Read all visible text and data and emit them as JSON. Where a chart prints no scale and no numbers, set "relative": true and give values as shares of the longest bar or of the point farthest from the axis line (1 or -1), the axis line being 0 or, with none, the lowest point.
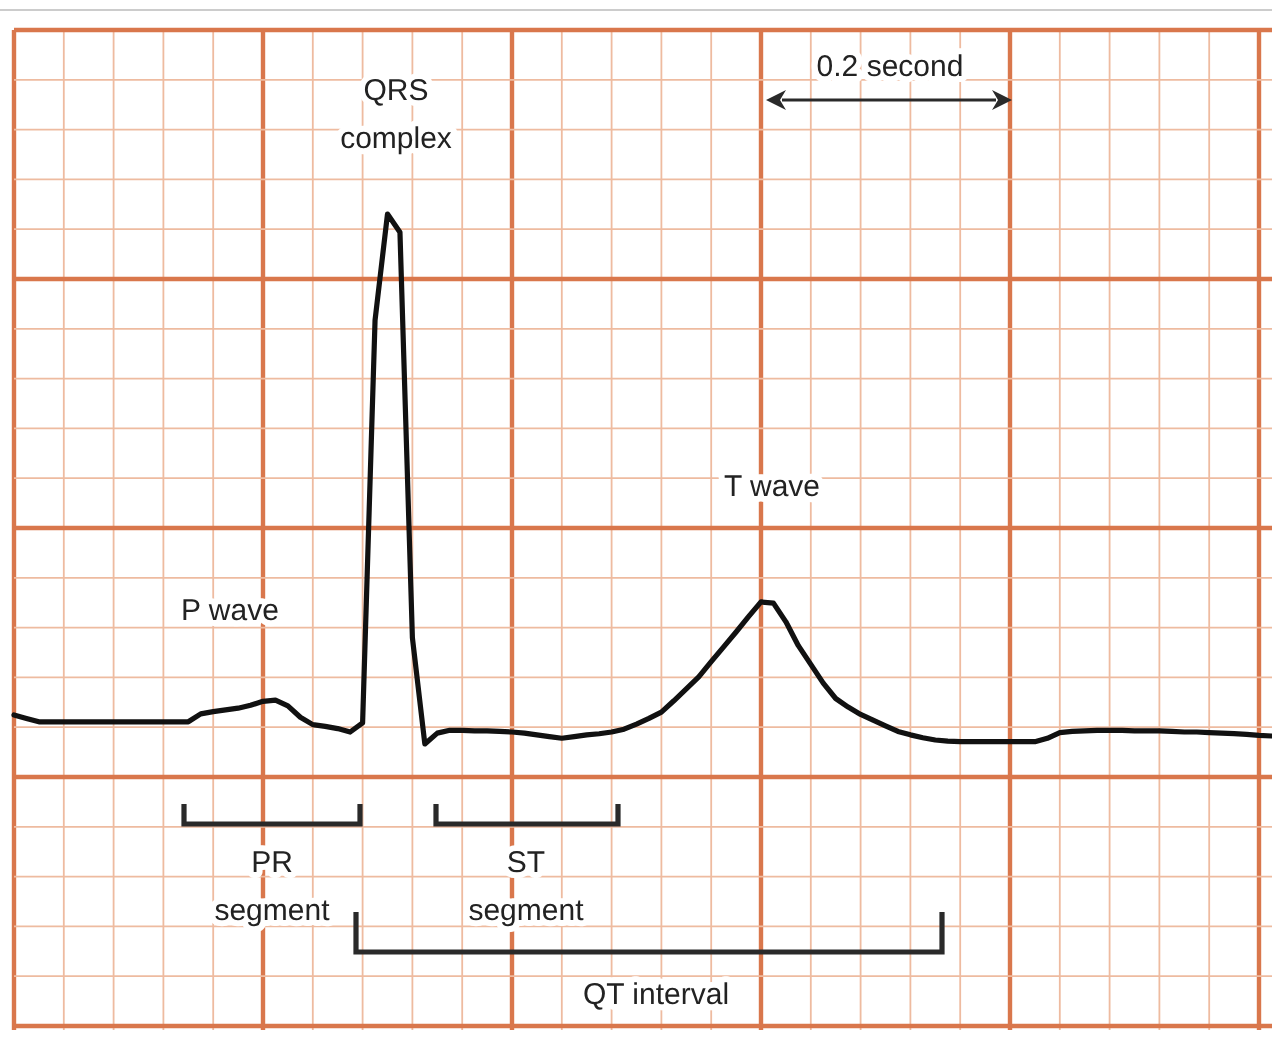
{
  "chart_data": {
    "type": "line",
    "relative": true,
    "grid": true,
    "categories": [
      null,
      null,
      null,
      null,
      null,
      null,
      null,
      null,
      null,
      null,
      null,
      null,
      null,
      null,
      null,
      null,
      null,
      null,
      null,
      null,
      null,
      null,
      null,
      null,
      null,
      null,
      null,
      null,
      null,
      null,
      null,
      null,
      null,
      null,
      null,
      null,
      null,
      null,
      null,
      null,
      null,
      null,
      null,
      null,
      null,
      null,
      null,
      null,
      null,
      null,
      null,
      null,
      null,
      null,
      null,
      null,
      null,
      null,
      null,
      null,
      null,
      null,
      null,
      null,
      null,
      null,
      null,
      null,
      null,
      null,
      null,
      null,
      null,
      null,
      null,
      null,
      null,
      null,
      null,
      null,
      null,
      null,
      null,
      null,
      null,
      null,
      null,
      null,
      null,
      null,
      null,
      null,
      null,
      null,
      null,
      null,
      null,
      null,
      null,
      null,
      null,
      null
    ],
    "series": [
      {
        "color": "#111111",
        "values": [
          0.118,
          0.112,
          0.106,
          0.106,
          0.106,
          0.106,
          0.106,
          0.106,
          0.106,
          0.106,
          0.106,
          0.106,
          0.106,
          0.106,
          0.106,
          0.12,
          0.124,
          0.127,
          0.13,
          0.135,
          0.142,
          0.144,
          0.134,
          0.114,
          0.101,
          0.098,
          0.094,
          0.088,
          0.104,
          0.813,
          1,
          0.968,
          0.254,
          0.067,
          0.086,
          0.091,
          0.091,
          0.09,
          0.09,
          0.089,
          0.088,
          0.086,
          0.083,
          0.08,
          0.077,
          0.08,
          0.083,
          0.085,
          0.088,
          0.093,
          0.102,
          0.112,
          0.123,
          0.143,
          0.164,
          0.185,
          0.212,
          0.238,
          0.264,
          0.291,
          0.317,
          0.315,
          0.282,
          0.24,
          0.207,
          0.174,
          0.147,
          0.132,
          0.119,
          0.109,
          0.099,
          0.089,
          0.083,
          0.078,
          0.074,
          0.072,
          0.071,
          0.071,
          0.071,
          0.071,
          0.071,
          0.071,
          0.071,
          0.077,
          0.087,
          0.089,
          0.09,
          0.091,
          0.091,
          0.091,
          0.09,
          0.09,
          0.09,
          0.089,
          0.088,
          0.088,
          0.087,
          0.086,
          0.085,
          0.084,
          0.082,
          0.081
        ]
      }
    ],
    "annotations": [
      "P wave",
      "QRS complex",
      "T wave",
      "0.2 second",
      "PR segment",
      "ST segment",
      "QT interval"
    ]
  }
}
